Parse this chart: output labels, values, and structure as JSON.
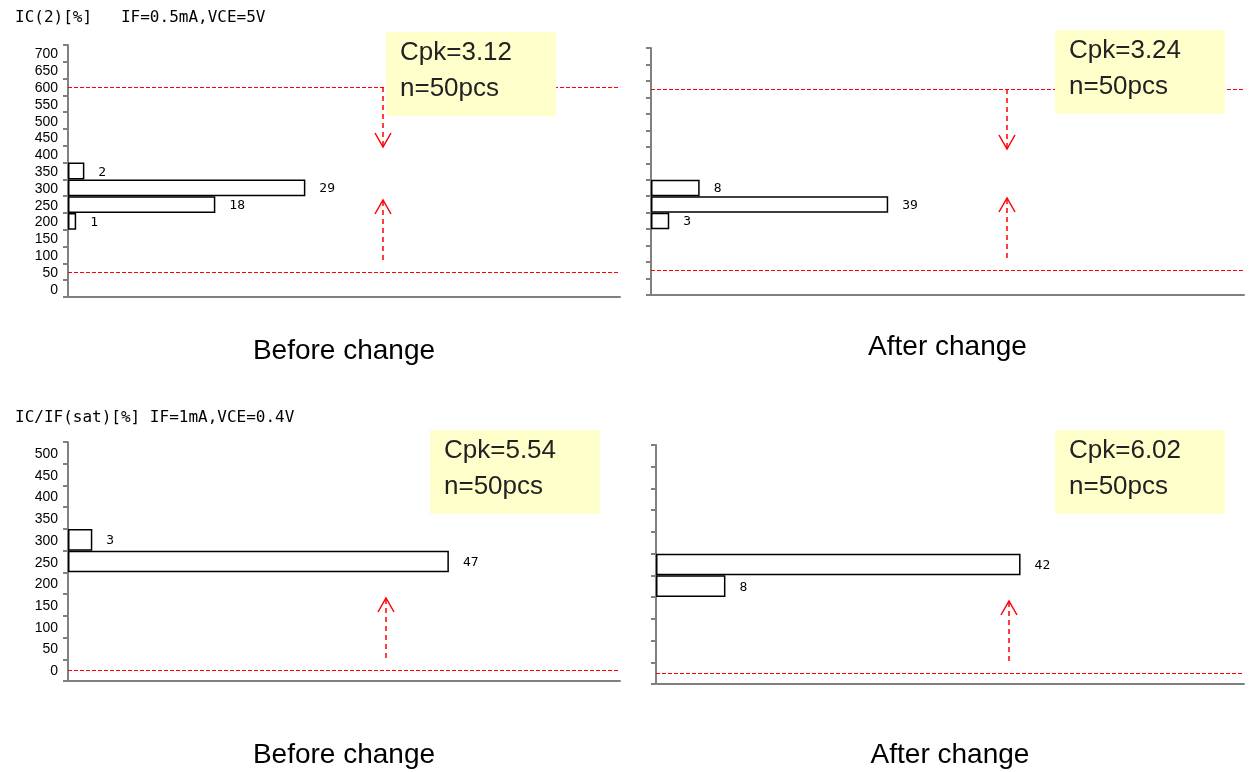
{
  "chart_data": [
    {
      "type": "bar",
      "orientation": "horizontal",
      "ylabel": "IC(2)[%]   IF=0.5mA,VCE=5V",
      "xlabel": "Before change",
      "categories": [
        "700",
        "650",
        "600",
        "550",
        "500",
        "450",
        "400",
        "350",
        "300",
        "250",
        "200",
        "150",
        "100",
        "50",
        "0"
      ],
      "values": [
        null,
        null,
        null,
        null,
        null,
        null,
        null,
        2,
        29,
        18,
        1,
        null,
        null,
        null,
        null
      ],
      "color": "#ffffff",
      "data_labels": true,
      "tick_labels": "y",
      "grid": false,
      "ref_lines": [
        {
          "axis": "y",
          "value": "600",
          "color": "#ff0000",
          "line_style": "dashed"
        },
        {
          "axis": "y",
          "value": "50",
          "color": "#ff0000",
          "line_style": "dashed"
        }
      ],
      "annotations": [
        "Cpk=3.12",
        "n=50pcs"
      ]
    },
    {
      "type": "bar",
      "orientation": "horizontal",
      "xlabel": "After change",
      "categories": [
        "700",
        "650",
        "600",
        "550",
        "500",
        "450",
        "400",
        "350",
        "300",
        "250",
        "200",
        "150",
        "100",
        "50",
        "0"
      ],
      "values": [
        null,
        null,
        null,
        null,
        null,
        null,
        null,
        null,
        8,
        39,
        3,
        null,
        null,
        null,
        null
      ],
      "color": "#ffffff",
      "data_labels": true,
      "tick_labels": false,
      "grid": false,
      "ref_lines": [
        {
          "axis": "y",
          "value": "600",
          "color": "#ff0000",
          "line_style": "dashed"
        },
        {
          "axis": "y",
          "value": "50",
          "color": "#ff0000",
          "line_style": "dashed"
        }
      ],
      "annotations": [
        "Cpk=3.24",
        "n=50pcs"
      ]
    },
    {
      "type": "bar",
      "orientation": "horizontal",
      "ylabel": "IC/IF(sat)[%] IF=1mA,VCE=0.4V",
      "xlabel": "Before change",
      "categories": [
        "500",
        "450",
        "400",
        "350",
        "300",
        "250",
        "200",
        "150",
        "100",
        "50",
        "0"
      ],
      "values": [
        null,
        null,
        null,
        null,
        3,
        47,
        null,
        null,
        null,
        null,
        null
      ],
      "color": "#ffffff",
      "data_labels": true,
      "tick_labels": "y",
      "grid": false,
      "ref_lines": [
        {
          "axis": "y",
          "value": "0",
          "color": "#ff0000",
          "line_style": "dashed"
        }
      ],
      "annotations": [
        "Cpk=5.54",
        "n=50pcs"
      ]
    },
    {
      "type": "bar",
      "orientation": "horizontal",
      "xlabel": "After change",
      "categories": [
        "500",
        "450",
        "400",
        "350",
        "300",
        "250",
        "200",
        "150",
        "100",
        "50",
        "0"
      ],
      "values": [
        null,
        null,
        null,
        null,
        null,
        42,
        8,
        null,
        null,
        null,
        null
      ],
      "color": "#ffffff",
      "data_labels": true,
      "tick_labels": false,
      "grid": false,
      "ref_lines": [
        {
          "axis": "y",
          "value": "0",
          "color": "#ff0000",
          "line_style": "dashed"
        }
      ],
      "annotations": [
        "Cpk=6.02",
        "n=50pcs"
      ]
    }
  ]
}
